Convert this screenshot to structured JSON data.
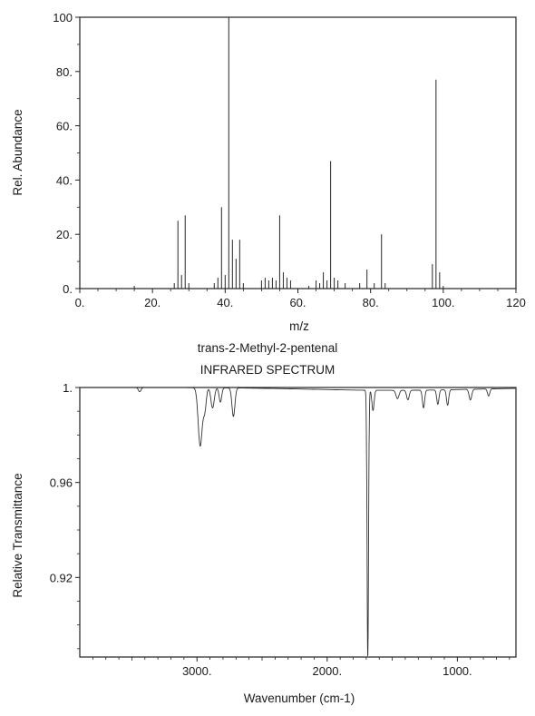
{
  "figure": {
    "compound": "trans-2-Methyl-2-pentenal",
    "ir_heading": "INFRARED SPECTRUM"
  },
  "chart_data": [
    {
      "type": "bar",
      "name": "mass-spectrum",
      "xlabel": "m/z",
      "ylabel": "Rel. Abundance",
      "xlim": [
        0,
        120
      ],
      "ylim": [
        0,
        100
      ],
      "xticks": [
        0,
        20,
        40,
        60,
        80,
        100,
        120
      ],
      "xtick_labels": [
        "0.",
        "20.",
        "40.",
        "60.",
        "80.",
        "100.",
        "120"
      ],
      "yticks": [
        0,
        20,
        40,
        60,
        80,
        100
      ],
      "ytick_labels": [
        "0.",
        "20.",
        "40.",
        "60.",
        "80.",
        "100"
      ],
      "grid": false,
      "peaks": [
        {
          "mz": 15,
          "y": 1
        },
        {
          "mz": 26,
          "y": 2
        },
        {
          "mz": 27,
          "y": 25
        },
        {
          "mz": 28,
          "y": 5
        },
        {
          "mz": 29,
          "y": 27
        },
        {
          "mz": 30,
          "y": 2
        },
        {
          "mz": 37,
          "y": 2
        },
        {
          "mz": 38,
          "y": 4
        },
        {
          "mz": 39,
          "y": 30
        },
        {
          "mz": 40,
          "y": 5
        },
        {
          "mz": 41,
          "y": 100
        },
        {
          "mz": 42,
          "y": 18
        },
        {
          "mz": 43,
          "y": 11
        },
        {
          "mz": 44,
          "y": 18
        },
        {
          "mz": 45,
          "y": 2
        },
        {
          "mz": 50,
          "y": 3
        },
        {
          "mz": 51,
          "y": 4
        },
        {
          "mz": 52,
          "y": 3
        },
        {
          "mz": 53,
          "y": 4
        },
        {
          "mz": 54,
          "y": 3
        },
        {
          "mz": 55,
          "y": 27
        },
        {
          "mz": 56,
          "y": 6
        },
        {
          "mz": 57,
          "y": 4
        },
        {
          "mz": 58,
          "y": 3
        },
        {
          "mz": 63,
          "y": 1
        },
        {
          "mz": 65,
          "y": 3
        },
        {
          "mz": 66,
          "y": 2
        },
        {
          "mz": 67,
          "y": 6
        },
        {
          "mz": 68,
          "y": 3
        },
        {
          "mz": 69,
          "y": 47
        },
        {
          "mz": 70,
          "y": 4
        },
        {
          "mz": 71,
          "y": 3
        },
        {
          "mz": 73,
          "y": 2
        },
        {
          "mz": 77,
          "y": 2
        },
        {
          "mz": 79,
          "y": 7
        },
        {
          "mz": 81,
          "y": 2
        },
        {
          "mz": 83,
          "y": 20
        },
        {
          "mz": 84,
          "y": 2
        },
        {
          "mz": 97,
          "y": 9
        },
        {
          "mz": 98,
          "y": 77
        },
        {
          "mz": 99,
          "y": 6
        },
        {
          "mz": 100,
          "y": 1
        }
      ]
    },
    {
      "type": "line",
      "name": "infrared-spectrum",
      "xlabel": "Wavenumber (cm-1)",
      "ylabel": "Relative Transmittance",
      "xlim": [
        3900,
        550
      ],
      "ylim": [
        0.8865,
        1.0
      ],
      "xticks": [
        3000,
        2000,
        1000
      ],
      "xtick_labels": [
        "3000.",
        "2000.",
        "1000."
      ],
      "yticks": [
        1.0,
        0.96,
        0.92
      ],
      "ytick_labels": [
        "1.",
        "0.96",
        "0.92"
      ],
      "grid": false,
      "baseline": 1.0,
      "bands": [
        {
          "center": 3440,
          "depth": 0.0018,
          "width": 14
        },
        {
          "center": 2975,
          "depth": 0.0245,
          "width": 22
        },
        {
          "center": 2940,
          "depth": 0.009,
          "width": 16
        },
        {
          "center": 2880,
          "depth": 0.0085,
          "width": 18
        },
        {
          "center": 2820,
          "depth": 0.006,
          "width": 14
        },
        {
          "center": 2720,
          "depth": 0.012,
          "width": 16
        },
        {
          "center": 1688,
          "depth": 0.113,
          "width": 8
        },
        {
          "center": 1648,
          "depth": 0.0085,
          "width": 12
        },
        {
          "center": 1460,
          "depth": 0.0035,
          "width": 16
        },
        {
          "center": 1380,
          "depth": 0.004,
          "width": 14
        },
        {
          "center": 1260,
          "depth": 0.0075,
          "width": 12
        },
        {
          "center": 1150,
          "depth": 0.006,
          "width": 12
        },
        {
          "center": 1075,
          "depth": 0.0065,
          "width": 12
        },
        {
          "center": 900,
          "depth": 0.0045,
          "width": 14
        },
        {
          "center": 760,
          "depth": 0.003,
          "width": 12
        }
      ]
    }
  ]
}
